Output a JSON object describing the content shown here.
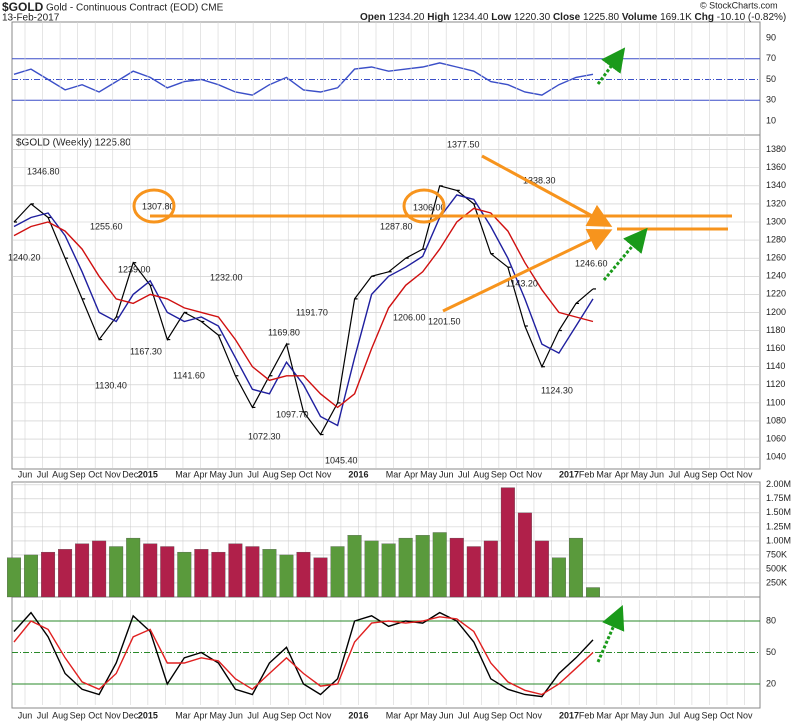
{
  "header": {
    "symbol": "$GOLD",
    "name": "Gold - Continuous Contract (EOD) CME",
    "date": "13-Feb-2017",
    "stats": [
      {
        "label": "Open",
        "value": "1234.20"
      },
      {
        "label": "High",
        "value": "1234.40"
      },
      {
        "label": "Low",
        "value": "1220.30"
      },
      {
        "label": "Close",
        "value": "1225.80"
      },
      {
        "label": "Volume",
        "value": "169.1K"
      },
      {
        "label": "Chg",
        "value": "-10.10 (-0.82%)"
      }
    ],
    "credit": "© StockCharts.com"
  },
  "chart_data": [
    {
      "type": "line",
      "series": [
        {
          "color": "#3b4fc8",
          "values": [
            55,
            60,
            50,
            40,
            45,
            38,
            48,
            58,
            52,
            42,
            48,
            50,
            45,
            38,
            35,
            45,
            52,
            40,
            38,
            42,
            60,
            62,
            58,
            60,
            62,
            66,
            62,
            58,
            48,
            45,
            38,
            35,
            45,
            52,
            55
          ]
        }
      ],
      "ylim": [
        0,
        100
      ],
      "yticks": [
        90,
        70,
        50,
        30,
        10
      ]
    },
    {
      "type": "line",
      "legend_text": "$GOLD (Weekly) 1225.80",
      "series": [
        {
          "color": "#000000",
          "values": [
            1300,
            1320,
            1305,
            1260,
            1215,
            1170,
            1195,
            1255,
            1230,
            1170,
            1200,
            1190,
            1175,
            1130,
            1095,
            1130,
            1165,
            1090,
            1065,
            1100,
            1215,
            1240,
            1245,
            1260,
            1270,
            1340,
            1335,
            1320,
            1265,
            1250,
            1185,
            1140,
            1180,
            1210,
            1226
          ]
        },
        {
          "color": "#1f1f9f",
          "values": [
            1295,
            1305,
            1310,
            1285,
            1245,
            1200,
            1190,
            1220,
            1235,
            1200,
            1190,
            1195,
            1185,
            1150,
            1115,
            1110,
            1145,
            1120,
            1085,
            1075,
            1150,
            1220,
            1240,
            1250,
            1262,
            1305,
            1330,
            1325,
            1295,
            1260,
            1215,
            1165,
            1155,
            1185,
            1215
          ]
        },
        {
          "color": "#d01010",
          "values": [
            1285,
            1295,
            1300,
            1290,
            1270,
            1240,
            1215,
            1210,
            1220,
            1215,
            1205,
            1200,
            1195,
            1170,
            1140,
            1125,
            1130,
            1130,
            1110,
            1095,
            1110,
            1160,
            1205,
            1230,
            1245,
            1270,
            1300,
            1315,
            1310,
            1290,
            1255,
            1225,
            1200,
            1195,
            1190
          ]
        }
      ],
      "annotations": [
        {
          "value": 1346.8,
          "label": "1346.80"
        },
        {
          "value": 1240.2,
          "label": "1240.20"
        },
        {
          "value": 1307.8,
          "label": "1307.80"
        },
        {
          "value": 1255.6,
          "label": "1255.60"
        },
        {
          "value": 1239,
          "label": "1239.00"
        },
        {
          "value": 1167.3,
          "label": "1167.30"
        },
        {
          "value": 1130.4,
          "label": "1130.40"
        },
        {
          "value": 1141.6,
          "label": "1141.60"
        },
        {
          "value": 1232,
          "label": "1232.00"
        },
        {
          "value": 1169.8,
          "label": "1169.80"
        },
        {
          "value": 1191.7,
          "label": "1191.70"
        },
        {
          "value": 1097.7,
          "label": "1097.70"
        },
        {
          "value": 1072.3,
          "label": "1072.30"
        },
        {
          "value": 1045.4,
          "label": "1045.40"
        },
        {
          "value": 1287.8,
          "label": "1287.80"
        },
        {
          "value": 1206,
          "label": "1206.00"
        },
        {
          "value": 1306,
          "label": "1306.00"
        },
        {
          "value": 1201.5,
          "label": "1201.50"
        },
        {
          "value": 1377.5,
          "label": "1377.50"
        },
        {
          "value": 1338.3,
          "label": "1338.30"
        },
        {
          "value": 1143.2,
          "label": "1143.20"
        },
        {
          "value": 1124.3,
          "label": "1124.30"
        },
        {
          "value": 1246.6,
          "label": "1246.60"
        }
      ],
      "ylim": [
        1028,
        1394
      ],
      "yticks": [
        1040,
        1060,
        1080,
        1100,
        1120,
        1140,
        1160,
        1180,
        1200,
        1220,
        1240,
        1260,
        1280,
        1300,
        1320,
        1340,
        1360,
        1380
      ],
      "grid": true,
      "month_labels": [
        "Jun",
        "Jul",
        "Aug",
        "Sep",
        "Oct",
        "Nov",
        "Dec",
        "2015",
        null,
        "Mar",
        "Apr",
        "May",
        "Jun",
        "Jul",
        "Aug",
        "Sep",
        "Oct",
        "Nov",
        null,
        "2016",
        null,
        "Mar",
        "Apr",
        "May",
        "Jun",
        "Jul",
        "Aug",
        "Sep",
        "Oct",
        "Nov",
        null,
        "2017",
        "Feb",
        "Mar",
        "Apr",
        "May",
        "Jun",
        "Jul",
        "Aug",
        "Sep",
        "Oct",
        "Nov"
      ]
    },
    {
      "type": "bar",
      "up_color": "#5a9a3c",
      "down_color": "#b0204a",
      "values": [
        700000,
        750000,
        800000,
        850000,
        950000,
        1000000,
        900000,
        1050000,
        950000,
        900000,
        800000,
        850000,
        800000,
        950000,
        900000,
        850000,
        750000,
        800000,
        700000,
        900000,
        1100000,
        1000000,
        950000,
        1050000,
        1100000,
        1150000,
        1050000,
        900000,
        1000000,
        1950000,
        1500000,
        1000000,
        700000,
        1050000,
        169100
      ],
      "ylim": [
        0,
        2050000
      ],
      "yticks": [
        {
          "value": 2000000,
          "label": "2.00M"
        },
        {
          "value": 1750000,
          "label": "1.75M"
        },
        {
          "value": 1500000,
          "label": "1.50M"
        },
        {
          "value": 1250000,
          "label": "1.25M"
        },
        {
          "value": 1000000,
          "label": "1.00M"
        },
        {
          "value": 750000,
          "label": "750K"
        },
        {
          "value": 500000,
          "label": "500K"
        },
        {
          "value": 250000,
          "label": "250K"
        }
      ]
    },
    {
      "type": "line",
      "series": [
        {
          "color": "#000000",
          "values": [
            70,
            88,
            65,
            30,
            15,
            10,
            40,
            85,
            70,
            20,
            45,
            50,
            40,
            15,
            10,
            40,
            55,
            20,
            10,
            25,
            80,
            85,
            75,
            80,
            78,
            88,
            80,
            60,
            25,
            15,
            10,
            8,
            30,
            45,
            62
          ]
        },
        {
          "color": "#e02020",
          "values": [
            60,
            80,
            72,
            45,
            22,
            15,
            30,
            65,
            72,
            40,
            40,
            45,
            42,
            25,
            15,
            30,
            45,
            30,
            18,
            20,
            60,
            78,
            80,
            78,
            80,
            84,
            82,
            70,
            40,
            22,
            14,
            10,
            20,
            35,
            50
          ]
        }
      ],
      "ylim": [
        0,
        100
      ],
      "yticks": [
        80,
        50,
        20
      ],
      "month_labels": [
        "Jun",
        "Jul",
        "Aug",
        "Sep",
        "Oct",
        "Nov",
        "Dec",
        "2015",
        null,
        "Mar",
        "Apr",
        "May",
        "Jun",
        "Jul",
        "Aug",
        "Sep",
        "Oct",
        "Nov",
        null,
        "2016",
        null,
        "Mar",
        "Apr",
        "May",
        "Jun",
        "Jul",
        "Aug",
        "Sep",
        "Oct",
        "Nov",
        null,
        "2017",
        "Feb",
        "Mar",
        "Apr",
        "May",
        "Jun",
        "Jul",
        "Aug",
        "Sep",
        "Oct",
        "Nov"
      ]
    }
  ]
}
